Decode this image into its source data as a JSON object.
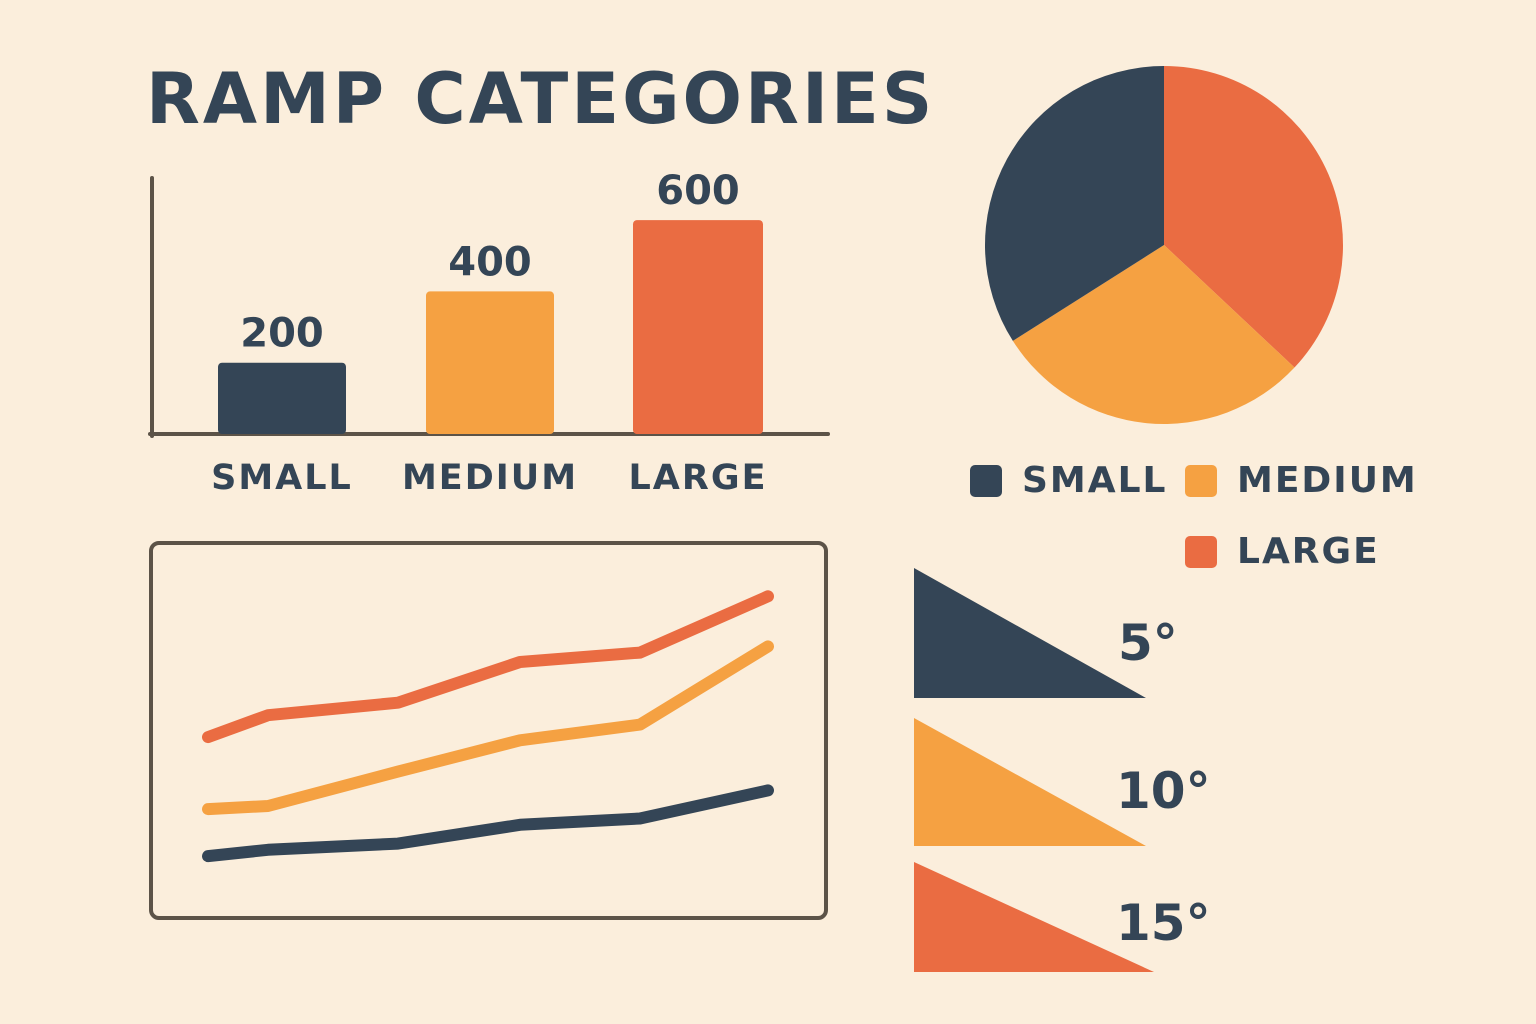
{
  "colors": {
    "background": "#fbeedc",
    "text": "#344556",
    "axis": "#5c5348",
    "small": "#344556",
    "medium": "#f5a142",
    "large": "#ea6c42"
  },
  "title": "RAMP CATEGORIES",
  "chart_data": [
    {
      "type": "bar",
      "categories": [
        "SMALL",
        "MEDIUM",
        "LARGE"
      ],
      "values": [
        200,
        400,
        600
      ],
      "data_labels": [
        "200",
        "400",
        "600"
      ],
      "colors": [
        "#344556",
        "#f5a142",
        "#ea6c42"
      ],
      "ylim": [
        0,
        800
      ],
      "grid": false
    },
    {
      "type": "pie",
      "labels": [
        "SMALL",
        "MEDIUM",
        "LARGE"
      ],
      "values": [
        34,
        29,
        37
      ],
      "colors": [
        "#344556",
        "#f5a142",
        "#ea6c42"
      ],
      "legend": [
        {
          "label": "SMALL",
          "color": "#344556"
        },
        {
          "label": "MEDIUM",
          "color": "#f5a142"
        },
        {
          "label": "LARGE",
          "color": "#ea6c42"
        }
      ],
      "legend_position": "bottom"
    },
    {
      "type": "line",
      "x": [
        1,
        2,
        3,
        4,
        5,
        6
      ],
      "ylim": [
        0,
        100
      ],
      "grid": false,
      "series": [
        {
          "color": "#ea6c42",
          "values": [
            45,
            52,
            56,
            69,
            72,
            90
          ]
        },
        {
          "color": "#f5a142",
          "values": [
            22,
            23,
            34,
            44,
            49,
            74
          ]
        },
        {
          "color": "#344556",
          "values": [
            7,
            9,
            11,
            17,
            19,
            28
          ]
        }
      ]
    }
  ],
  "angles": [
    {
      "label": "5°",
      "degrees": 5,
      "color": "#344556"
    },
    {
      "label": "10°",
      "degrees": 10,
      "color": "#f5a142"
    },
    {
      "label": "15°",
      "degrees": 15,
      "color": "#ea6c42"
    }
  ]
}
